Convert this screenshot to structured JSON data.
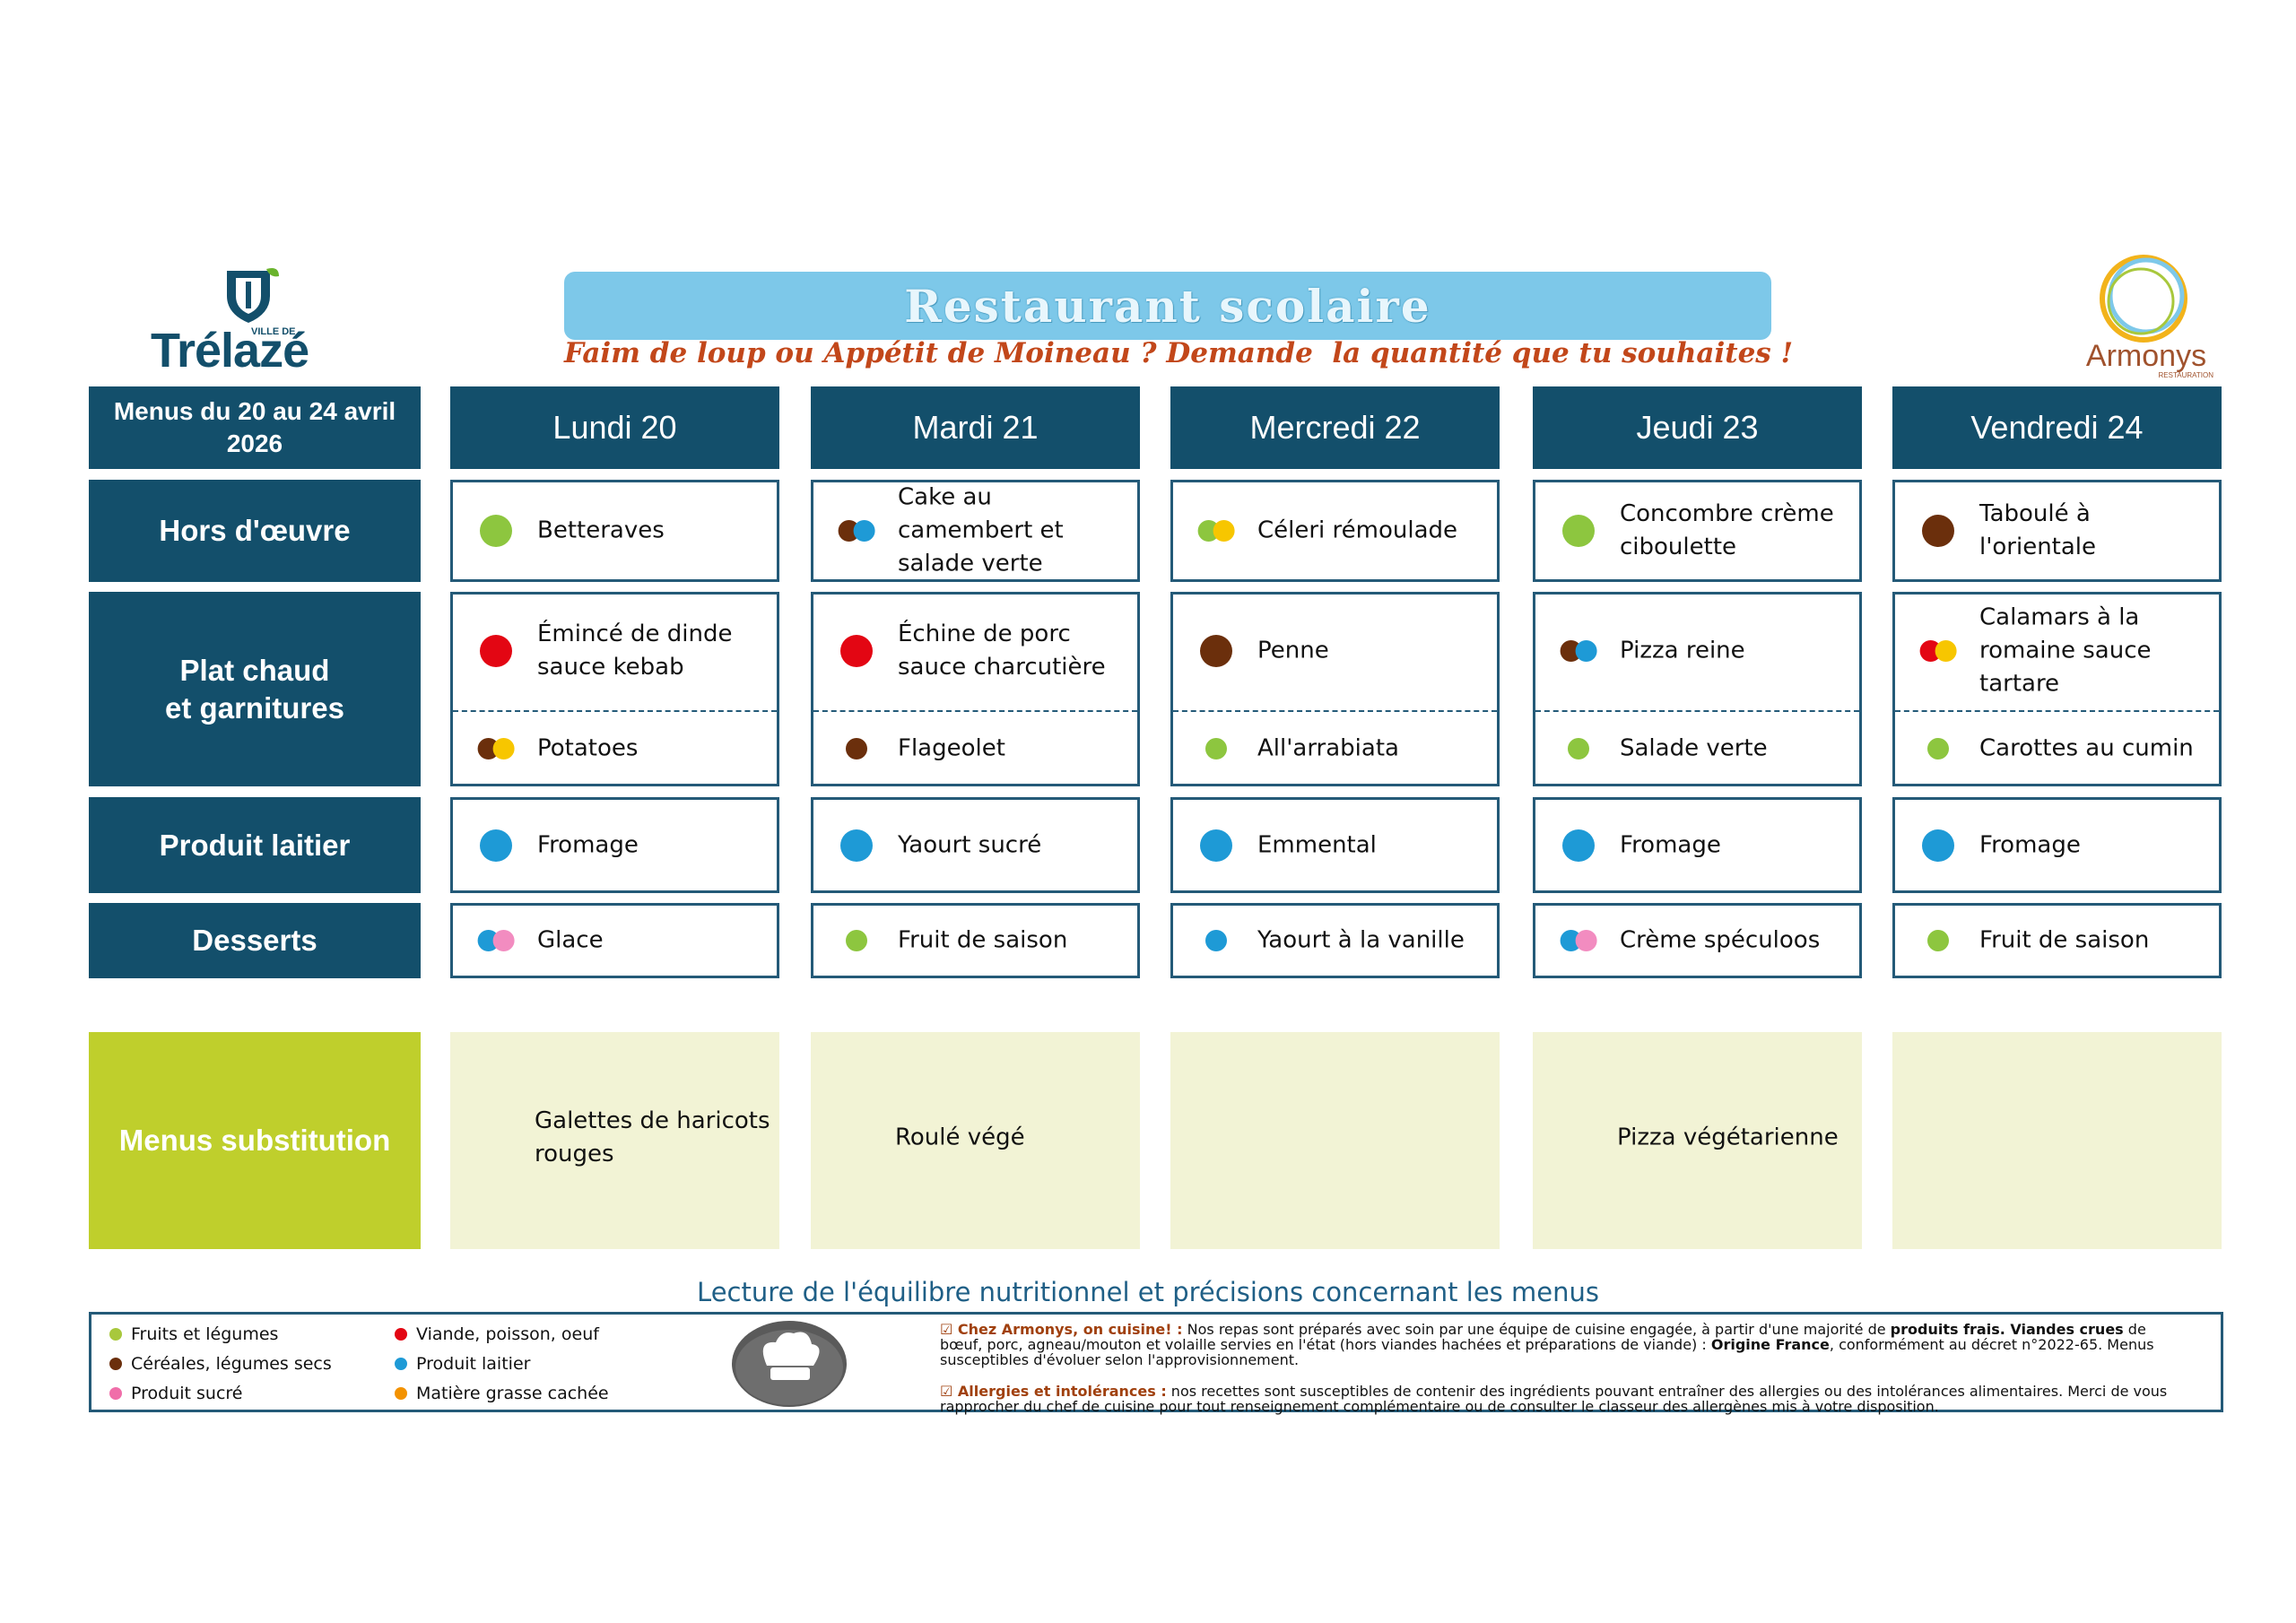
{
  "header": {
    "title": "Restaurant scolaire",
    "subtitle": "Faim de loup ou Appétit de Moineau ? Demande  la quantité que tu souhaites !",
    "logo_left": {
      "small": "VILLE DE",
      "name": "Trélazé"
    },
    "logo_right": {
      "name": "Armonys",
      "small": "RESTAURATION"
    }
  },
  "table": {
    "corner": "Menus du 20 au 24 avril 2026",
    "days": [
      "Lundi 20",
      "Mardi 21",
      "Mercredi 22",
      "Jeudi 23",
      "Vendredi 24"
    ],
    "rows": [
      {
        "label": "Hors d'œuvre",
        "cells": [
          [
            {
              "text": "Betteraves",
              "dots": [
                "#8dc63f"
              ]
            }
          ],
          [
            {
              "text": "Cake au camembert et salade verte",
              "dots": [
                "#6b2f0c",
                "#1e9ad6"
              ]
            }
          ],
          [
            {
              "text": "Céleri rémoulade",
              "dots": [
                "#8dc63f",
                "#f7c600"
              ]
            }
          ],
          [
            {
              "text": "Concombre crème ciboulette",
              "dots": [
                "#8dc63f"
              ]
            }
          ],
          [
            {
              "text": "Taboulé à l'orientale",
              "dots": [
                "#6b2f0c"
              ]
            }
          ]
        ]
      },
      {
        "label": "Plat chaud\net garnitures",
        "cells": [
          [
            {
              "text": "Émincé de dinde sauce kebab",
              "dots": [
                "#e30613"
              ]
            },
            {
              "text": "Potatoes",
              "dots": [
                "#6b2f0c",
                "#f7c600"
              ]
            }
          ],
          [
            {
              "text": "Échine de porc sauce charcutière",
              "dots": [
                "#e30613"
              ]
            },
            {
              "text": "Flageolet",
              "dots": [
                "#6b2f0c"
              ]
            }
          ],
          [
            {
              "text": "Penne",
              "dots": [
                "#6b2f0c"
              ]
            },
            {
              "text": "All'arrabiata",
              "dots": [
                "#8dc63f"
              ]
            }
          ],
          [
            {
              "text": "Pizza reine",
              "dots": [
                "#6b2f0c",
                "#1e9ad6"
              ]
            },
            {
              "text": "Salade verte",
              "dots": [
                "#8dc63f"
              ]
            }
          ],
          [
            {
              "text": "Calamars à la romaine sauce tartare",
              "dots": [
                "#e30613",
                "#f7c600"
              ]
            },
            {
              "text": "Carottes au cumin",
              "dots": [
                "#8dc63f"
              ]
            }
          ]
        ]
      },
      {
        "label": "Produit laitier",
        "cells": [
          [
            {
              "text": "Fromage",
              "dots": [
                "#1e9ad6"
              ]
            }
          ],
          [
            {
              "text": "Yaourt sucré",
              "dots": [
                "#1e9ad6"
              ]
            }
          ],
          [
            {
              "text": "Emmental",
              "dots": [
                "#1e9ad6"
              ]
            }
          ],
          [
            {
              "text": "Fromage",
              "dots": [
                "#1e9ad6"
              ]
            }
          ],
          [
            {
              "text": "Fromage",
              "dots": [
                "#1e9ad6"
              ]
            }
          ]
        ]
      },
      {
        "label": "Desserts",
        "cells": [
          [
            {
              "text": "Glace",
              "dots": [
                "#1e9ad6",
                "#f28cc0"
              ]
            }
          ],
          [
            {
              "text": "Fruit de saison",
              "dots": [
                "#8dc63f"
              ]
            }
          ],
          [
            {
              "text": "Yaourt à la vanille",
              "dots": [
                "#1e9ad6"
              ]
            }
          ],
          [
            {
              "text": "Crème spéculoos",
              "dots": [
                "#1e9ad6",
                "#f28cc0"
              ]
            }
          ],
          [
            {
              "text": "Fruit de saison",
              "dots": [
                "#8dc63f"
              ]
            }
          ]
        ]
      },
      {
        "label": "Menus substitution",
        "cells": [
          [
            {
              "text": "Galettes de haricots rouges",
              "dots": []
            }
          ],
          [
            {
              "text": "Roulé végé",
              "dots": []
            }
          ],
          [],
          [
            {
              "text": "Pizza végétarienne",
              "dots": []
            }
          ],
          []
        ]
      }
    ]
  },
  "legend": {
    "title": "Lecture de l'équilibre nutritionnel et précisions concernant les menus",
    "items": [
      {
        "label": "Fruits et légumes",
        "color": "#a8c83c"
      },
      {
        "label": "Céréales, légumes secs",
        "color": "#6b2f0c"
      },
      {
        "label": "Produit sucré",
        "color": "#f06ea9"
      },
      {
        "label": "Viande, poisson, oeuf",
        "color": "#e30613"
      },
      {
        "label": "Produit laitier",
        "color": "#1e9ad6"
      },
      {
        "label": "Matière grasse cachée",
        "color": "#f39200"
      }
    ],
    "notes": [
      [
        {
          "text": "☑ Chez Armonys, on cuisine! :",
          "style": "brand"
        },
        {
          "text": " Nos repas sont préparés avec soin par une équipe de cuisine engagée, à partir d'une majorité de ",
          "style": "plain"
        },
        {
          "text": "produits frais. Viandes crues",
          "style": "bold"
        },
        {
          "text": " de bœuf, porc, agneau/mouton et volaille servies en l'état (hors viandes hachées et préparations de viande) : ",
          "style": "plain"
        },
        {
          "text": "Origine France",
          "style": "bold"
        },
        {
          "text": ", conformément au décret n°2022-65. Menus susceptibles d'évoluer selon l'approvisionnement.",
          "style": "plain"
        }
      ],
      [
        {
          "text": "☑ Allergies et intolérances :",
          "style": "brand"
        },
        {
          "text": " nos recettes sont susceptibles de contenir des ingrédients pouvant entraîner des allergies ou des intolérances alimentaires. Merci de vous rapprocher du chef de cuisine pour tout renseignement complémentaire ou de consulter le classeur des allergènes mis à votre disposition.",
          "style": "plain"
        }
      ]
    ]
  }
}
